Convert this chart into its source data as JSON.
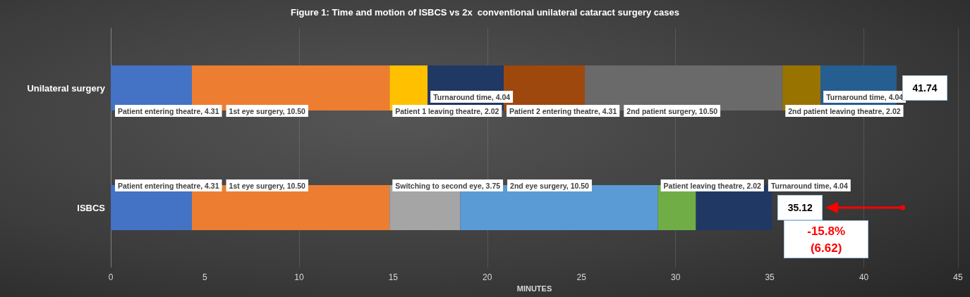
{
  "chart_data": {
    "type": "bar",
    "orientation": "horizontal",
    "stacked": true,
    "title": "Figure 1: Time and motion of ISBCS vs 2x  conventional unilateral cataract surgery cases",
    "xlabel": "MINUTES",
    "categories": [
      "Unilateral surgery",
      "ISBCS"
    ],
    "xlim": [
      0,
      45
    ],
    "xticks": [
      0,
      5,
      10,
      15,
      20,
      25,
      30,
      35,
      40,
      45
    ],
    "grid": "x",
    "series": [
      {
        "color": "#4472c4",
        "values": [
          4.31,
          null
        ],
        "value_labels": [
          "Patient entering theatre, 4.31",
          null
        ]
      },
      {
        "color": "#ed7d31",
        "values": [
          10.5,
          null
        ],
        "value_labels": [
          "1st eye surgery, 10.50",
          null
        ]
      },
      {
        "color": "#ffc000",
        "values": [
          2.02,
          null
        ],
        "value_labels": [
          "Patient 1 leaving theatre, 2.02",
          null
        ]
      },
      {
        "color": "#203864",
        "values": [
          4.04,
          null
        ],
        "value_labels": [
          "Turnaround time, 4.04",
          null
        ]
      },
      {
        "color": "#9e480e",
        "values": [
          4.31,
          null
        ],
        "value_labels": [
          "Patient 2 entering theatre, 4.31",
          null
        ]
      },
      {
        "color": "#6a6a6a",
        "values": [
          10.5,
          null
        ],
        "value_labels": [
          "2nd patient surgery, 10.50",
          null
        ]
      },
      {
        "color": "#997300",
        "values": [
          2.02,
          null
        ],
        "value_labels": [
          "2nd patient leaving theatre, 2.02",
          null
        ]
      },
      {
        "color": "#255e91",
        "values": [
          4.04,
          null
        ],
        "value_labels": [
          "Turnaround time, 4.04",
          null
        ]
      },
      {
        "color": "#4472c4",
        "values": [
          null,
          4.31
        ],
        "value_labels": [
          null,
          "Patient entering theatre, 4.31"
        ]
      },
      {
        "color": "#ed7d31",
        "values": [
          null,
          10.5
        ],
        "value_labels": [
          null,
          "1st eye surgery, 10.50"
        ]
      },
      {
        "color": "#a5a5a5",
        "values": [
          null,
          3.75
        ],
        "value_labels": [
          null,
          "Switching to second eye, 3.75"
        ]
      },
      {
        "color": "#5b9bd5",
        "values": [
          null,
          10.5
        ],
        "value_labels": [
          null,
          "2nd eye surgery, 10.50"
        ]
      },
      {
        "color": "#70ad47",
        "values": [
          null,
          2.02
        ],
        "value_labels": [
          null,
          "Patient leaving theatre, 2.02"
        ]
      },
      {
        "color": "#203864",
        "values": [
          null,
          4.04
        ],
        "value_labels": [
          null,
          "Turnaround time, 4.04"
        ]
      }
    ],
    "totals": [
      "41.74",
      "35.12"
    ],
    "annotations": [
      "-15.8%\n(6.62)"
    ]
  }
}
